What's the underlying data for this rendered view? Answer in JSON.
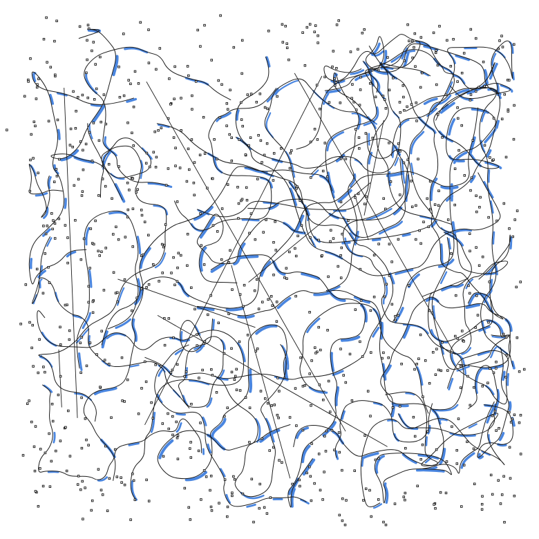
{
  "artwork": {
    "kind": "generative line art",
    "background_color": "#ffffff",
    "line_color": "#1a1a1a",
    "accent_color": "#4a86e0",
    "dot_color": "#111111",
    "dot_shape": "small hollow square"
  }
}
